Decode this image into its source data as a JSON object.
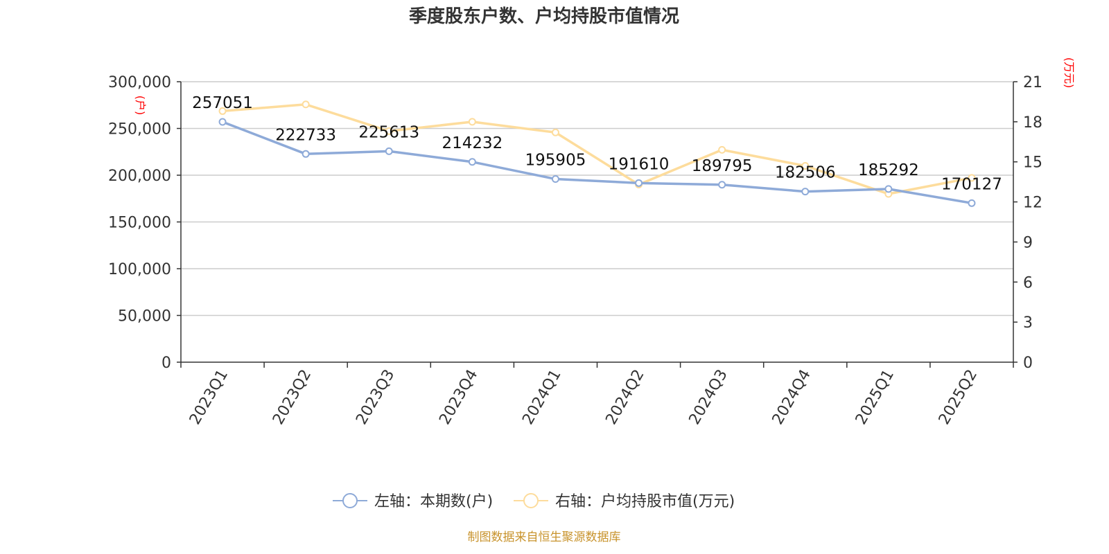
{
  "chart_data": {
    "type": "line",
    "title": "季度股东户数、户均持股市值情况",
    "categories": [
      "2023Q1",
      "2023Q2",
      "2023Q3",
      "2023Q4",
      "2024Q1",
      "2024Q2",
      "2024Q3",
      "2024Q4",
      "2025Q1",
      "2025Q2"
    ],
    "series": [
      {
        "name": "左轴：本期数(户)",
        "axis": "left",
        "color": "#8eaad8",
        "values": [
          257051,
          222733,
          225613,
          214232,
          195905,
          191610,
          189795,
          182506,
          185292,
          170127
        ],
        "labels": [
          "257051",
          "222733",
          "225613",
          "214232",
          "195905",
          "191610",
          "189795",
          "182506",
          "185292",
          "170127"
        ]
      },
      {
        "name": "右轴：户均持股市值(万元)",
        "axis": "right",
        "color": "#fddc9c",
        "values": [
          18.8,
          19.3,
          17.3,
          18.0,
          17.2,
          13.3,
          15.9,
          14.7,
          12.6,
          13.8
        ]
      }
    ],
    "left_axis": {
      "unit": "(户)",
      "min": 0,
      "max": 300000,
      "ticks": [
        "0",
        "50,000",
        "100,000",
        "150,000",
        "200,000",
        "250,000",
        "300,000"
      ]
    },
    "right_axis": {
      "unit": "(万元)",
      "min": 0,
      "max": 21,
      "ticks": [
        "0",
        "3",
        "6",
        "9",
        "12",
        "15",
        "18",
        "21"
      ]
    },
    "grid": true,
    "legend_position": "bottom"
  },
  "source": "制图数据来自恒生聚源数据库"
}
